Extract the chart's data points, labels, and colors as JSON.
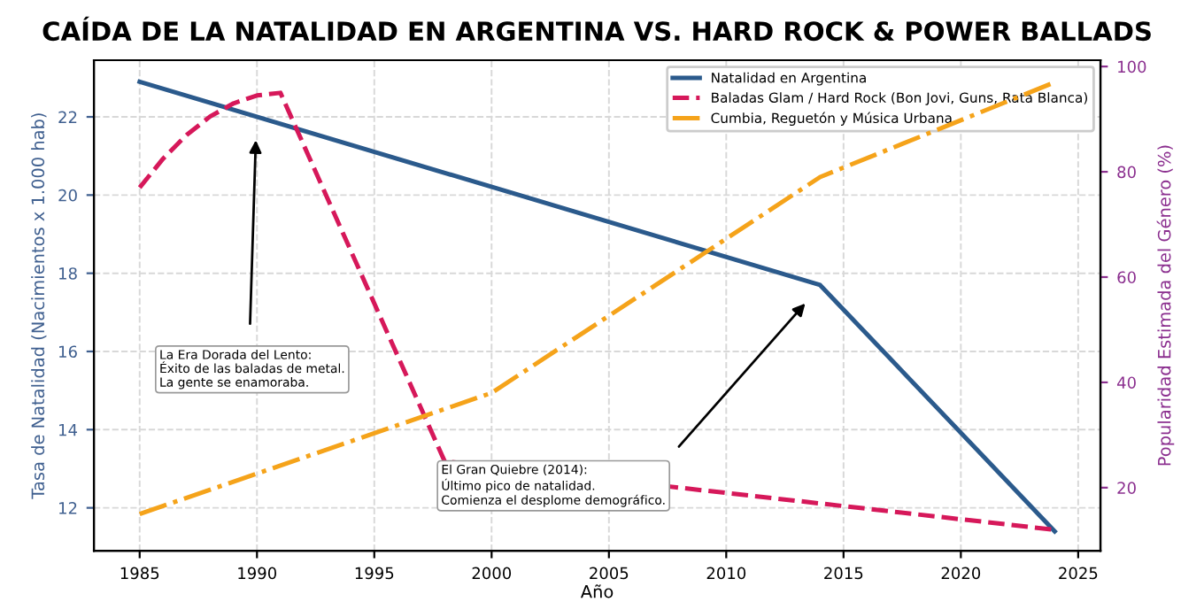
{
  "chart_data": {
    "type": "line",
    "title": "CAÍDA DE LA NATALIDAD EN ARGENTINA VS. HARD ROCK & POWER BALLADS",
    "xlabel": "Año",
    "ylabel": "Tasa de Natalidad (Nacimientos x 1.000 hab)",
    "y2label": "Popularidad Estimada del Género (%)",
    "series": [
      {
        "name": "Natalidad en Argentina",
        "color": "#2b5a8c",
        "line_style": "solid",
        "x": [
          1985,
          2014,
          2024
        ],
        "values": [
          22.9,
          17.7,
          11.4
        ]
      },
      {
        "name": "Baladas Glam / Hard Rock (Bon Jovi, Guns, Rata Blanca)",
        "color": "#d6185a",
        "line_style": "dashed",
        "axis": "y2",
        "x": [
          1985,
          1986,
          1987,
          1988,
          1989,
          1990,
          1991,
          1998,
          2024
        ],
        "values": [
          77,
          82.5,
          87,
          90.5,
          93,
          94.5,
          95,
          25,
          12
        ]
      },
      {
        "name": "Cumbia, Reguetón y Música Urbana",
        "color": "#f5a31a",
        "line_style": "dashdot",
        "axis": "y2",
        "x": [
          1985,
          2000,
          2014,
          2024
        ],
        "values": [
          15,
          38,
          79,
          97
        ]
      }
    ],
    "xlim": [
      1983.05,
      2025.95
    ],
    "xticks": [
      1985,
      1990,
      1995,
      2000,
      2005,
      2010,
      2015,
      2020,
      2025
    ],
    "ylim": [
      10.9,
      23.45
    ],
    "yticks": [
      12,
      14,
      16,
      18,
      20,
      22
    ],
    "y2lim": [
      8.0,
      101.2
    ],
    "y2ticks": [
      20,
      40,
      60,
      80,
      100
    ],
    "grid": true,
    "legend": "top right",
    "annotations": [
      "La Era Dorada del Lento:\nÉxito de las baladas de metal.\nLa gente se enamoraba.",
      "El Gran Quiebre (2014):\nÚltimo pico de natalidad.\nComienza el desplome demográfico."
    ]
  }
}
